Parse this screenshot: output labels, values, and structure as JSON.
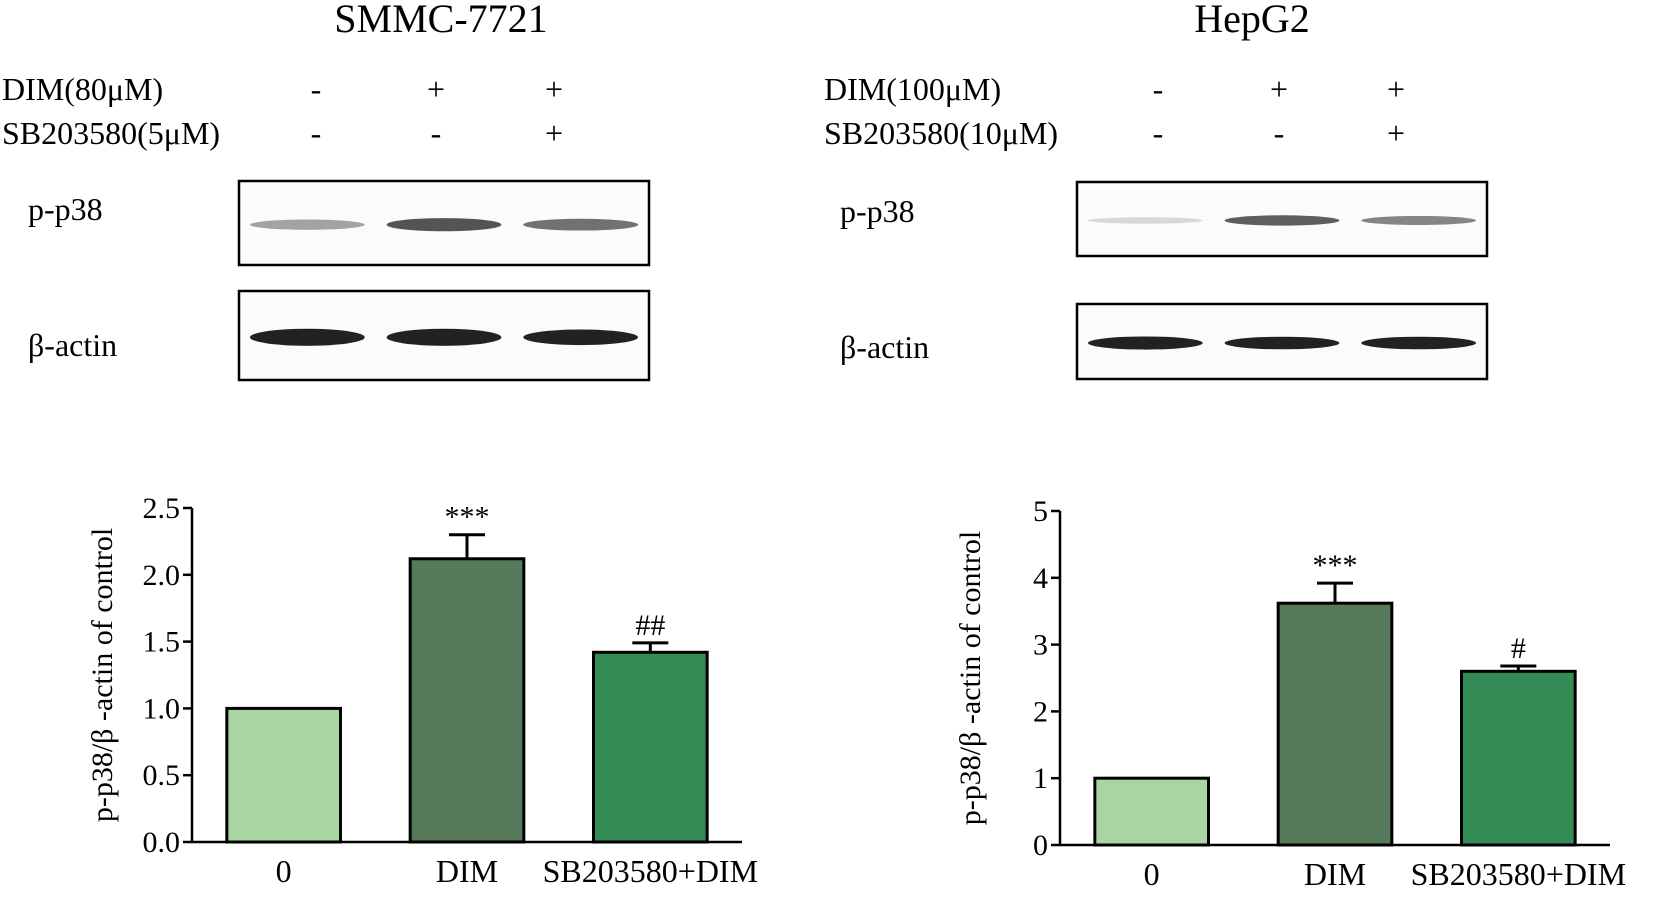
{
  "panels": [
    {
      "id": "smmc",
      "title": "SMMC-7721",
      "treatments": [
        {
          "label": "DIM(80μM)",
          "signs": [
            "-",
            "+",
            "+"
          ]
        },
        {
          "label": "SB203580(5μM)",
          "signs": [
            "-",
            "-",
            "+"
          ]
        }
      ],
      "blots": [
        {
          "label": "p-p38",
          "intensity": [
            0.35,
            0.75,
            0.6
          ],
          "thickness": [
            0.35,
            0.45,
            0.4
          ]
        },
        {
          "label": "β-actin",
          "intensity": [
            1.0,
            1.0,
            1.0
          ],
          "thickness": [
            0.55,
            0.55,
            0.5
          ]
        }
      ]
    },
    {
      "id": "hepg2",
      "title": "HepG2",
      "treatments": [
        {
          "label": "DIM(100μM)",
          "signs": [
            "-",
            "+",
            "+"
          ]
        },
        {
          "label": "SB203580(10μM)",
          "signs": [
            "-",
            "-",
            "+"
          ]
        }
      ],
      "blots": [
        {
          "label": "p-p38",
          "intensity": [
            0.08,
            0.7,
            0.5
          ],
          "thickness": [
            0.25,
            0.4,
            0.35
          ]
        },
        {
          "label": "β-actin",
          "intensity": [
            1.0,
            1.0,
            1.0
          ],
          "thickness": [
            0.5,
            0.48,
            0.48
          ]
        }
      ]
    }
  ],
  "chart_data": [
    {
      "type": "bar",
      "categories": [
        "0",
        "DIM",
        "SB203580+DIM"
      ],
      "values": [
        1.0,
        2.12,
        1.42
      ],
      "errors": [
        0,
        0.18,
        0.07
      ],
      "annotations": [
        "",
        "***",
        "##"
      ],
      "colors": [
        "#a8d5a2",
        "#56795a",
        "#338b56"
      ],
      "ylabel": "p-p38/β -actin of control",
      "ylim": [
        0,
        2.5
      ],
      "yticks": [
        "0.0",
        "0.5",
        "1.0",
        "1.5",
        "2.0",
        "2.5"
      ]
    },
    {
      "type": "bar",
      "categories": [
        "0",
        "DIM",
        "SB203580+DIM"
      ],
      "values": [
        1.0,
        3.62,
        2.6
      ],
      "errors": [
        0,
        0.3,
        0.08
      ],
      "annotations": [
        "",
        "***",
        "#"
      ],
      "colors": [
        "#a8d5a2",
        "#56795a",
        "#338b56"
      ],
      "ylabel": "p-p38/β -actin of control",
      "ylim": [
        0,
        5
      ],
      "yticks": [
        "0",
        "1",
        "2",
        "3",
        "4",
        "5"
      ]
    }
  ]
}
